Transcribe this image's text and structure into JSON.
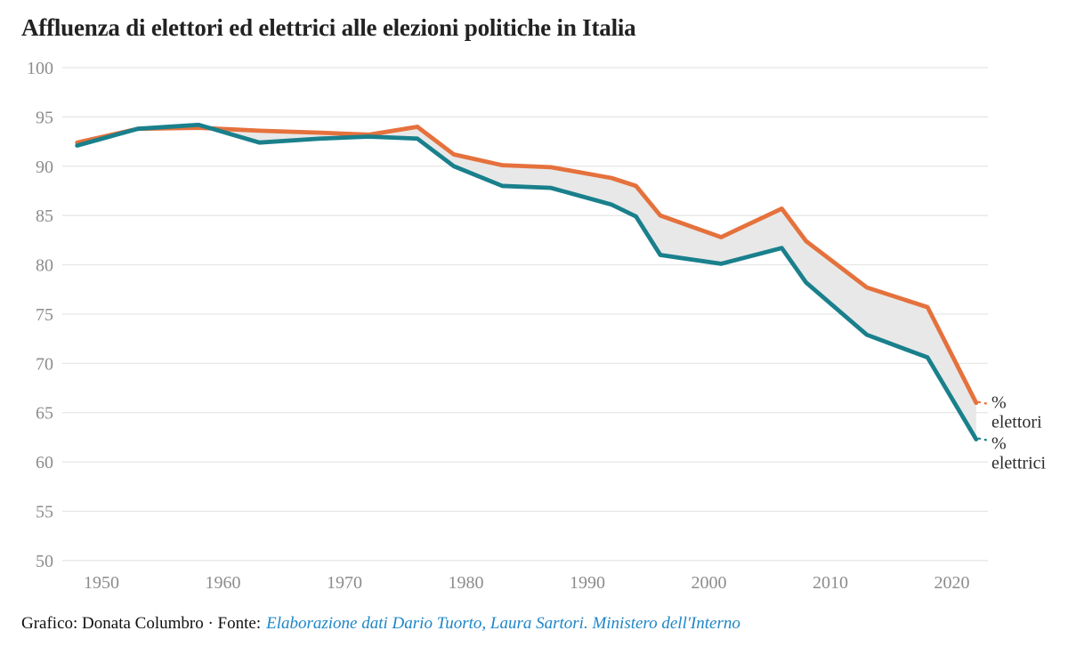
{
  "title": "Affluenza di elettori ed elettrici alle elezioni politiche in Italia",
  "footer": {
    "credit": "Grafico: Donata Columbro · Fonte:",
    "source_link": "Elaborazione dati Dario Tuorto, Laura Sartori. Ministero dell'Interno"
  },
  "chart_data": {
    "type": "line",
    "title": "Affluenza di elettori ed elettrici alle elezioni politiche in Italia",
    "x": [
      1948,
      1953,
      1958,
      1963,
      1968,
      1972,
      1976,
      1979,
      1983,
      1987,
      1992,
      1994,
      1996,
      2001,
      2006,
      2008,
      2013,
      2018,
      2022
    ],
    "series": [
      {
        "name": "% elettori",
        "label_lines": [
          "%",
          "elettori"
        ],
        "color": "#e5713c",
        "values": [
          92.4,
          93.8,
          93.9,
          93.6,
          93.4,
          93.2,
          94.0,
          91.2,
          90.1,
          89.9,
          88.8,
          88.0,
          85.0,
          82.8,
          85.7,
          82.4,
          77.7,
          75.7,
          66.0
        ]
      },
      {
        "name": "% elettrici",
        "label_lines": [
          "%",
          "elettrici"
        ],
        "color": "#19808c",
        "values": [
          92.1,
          93.8,
          94.2,
          92.4,
          92.8,
          93.0,
          92.8,
          90.0,
          88.0,
          87.8,
          86.1,
          84.9,
          81.0,
          80.1,
          81.7,
          78.2,
          72.9,
          70.6,
          62.3
        ]
      }
    ],
    "band_fill": "#e8e8e8",
    "ylim": [
      50,
      100
    ],
    "yticks": [
      50,
      55,
      60,
      65,
      70,
      75,
      80,
      85,
      90,
      95,
      100
    ],
    "xticks": [
      1950,
      1960,
      1970,
      1980,
      1990,
      2000,
      2010,
      2020
    ],
    "grid": "horizontal",
    "grid_color": "#e4e4e4",
    "tick_color": "#8c8c8c",
    "label_color": "#2b2b2b",
    "legend_position": "right-end-labels"
  }
}
